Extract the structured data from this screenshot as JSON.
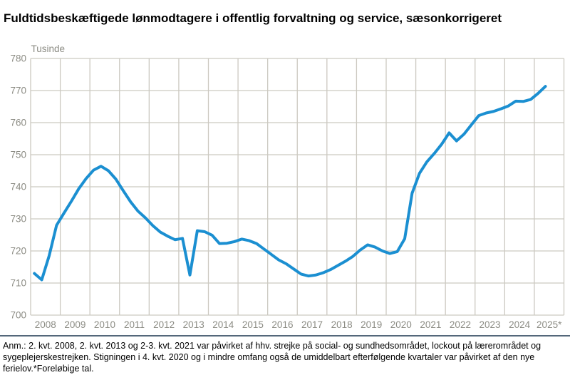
{
  "title": "Fuldtidsbeskæftigede lønmodtagere i offentlig forvaltning og service, sæsonkorrigeret",
  "unit_label": "Tusinde",
  "footnote": "Anm.: 2. kvt. 2008, 2. kvt. 2013 og 2-3. kvt. 2021 var påvirket af hhv. strejke på social- og sundhedsområdet, lockout på lærerområdet og sygeplejerskestrejken. Stigningen i 4. kvt. 2020 og i mindre omfang også de umiddelbart efterfølgende kvartaler var påvirket af den nye ferielov.*Foreløbige tal.",
  "colors": {
    "line": "#1b8fd1",
    "grid": "#ccc9c1",
    "axis_text": "#8c8c84",
    "divider": "#54677a",
    "title_text": "#000000",
    "footnote_text": "#000000"
  },
  "chart_data": {
    "type": "line",
    "title": "Fuldtidsbeskæftigede lønmodtagere i offentlig forvaltning og service, sæsonkorrigeret",
    "ylabel": "Tusinde",
    "xlabel": "",
    "ylim": [
      700,
      780
    ],
    "y_ticks": [
      700,
      710,
      720,
      730,
      740,
      750,
      760,
      770,
      780
    ],
    "grid": true,
    "legend_position": "none",
    "frequency": "quarterly",
    "x_start": "2008-Q1",
    "x_end": "2025-Q2",
    "categories": [
      "2008",
      "2009",
      "2010",
      "2011",
      "2012",
      "2013",
      "2014",
      "2015",
      "2016",
      "2017",
      "2018",
      "2019",
      "2020",
      "2021",
      "2022",
      "2023",
      "2024",
      "2025*"
    ],
    "series": [
      {
        "name": "Fuldtidsbeskæftigede lønmodtagere, sæsonkorrigeret (tusinde)",
        "values": [
          713.0,
          711.0,
          718.5,
          728.0,
          731.8,
          735.5,
          739.4,
          742.6,
          745.2,
          746.4,
          745.0,
          742.4,
          738.8,
          735.3,
          732.4,
          730.3,
          727.9,
          725.9,
          724.6,
          723.5,
          723.9,
          712.5,
          726.3,
          726.0,
          724.9,
          722.3,
          722.4,
          722.9,
          723.7,
          723.2,
          722.3,
          720.6,
          718.9,
          717.2,
          716.0,
          714.4,
          712.8,
          712.2,
          712.5,
          713.2,
          714.2,
          715.5,
          716.8,
          718.3,
          720.3,
          721.9,
          721.2,
          720.0,
          719.2,
          719.8,
          723.8,
          738.0,
          744.2,
          747.8,
          750.4,
          753.3,
          756.8,
          754.3,
          756.4,
          759.3,
          762.2,
          763.0,
          763.5,
          764.3,
          765.2,
          766.7,
          766.6,
          767.2,
          769.1,
          771.3
        ]
      }
    ]
  }
}
